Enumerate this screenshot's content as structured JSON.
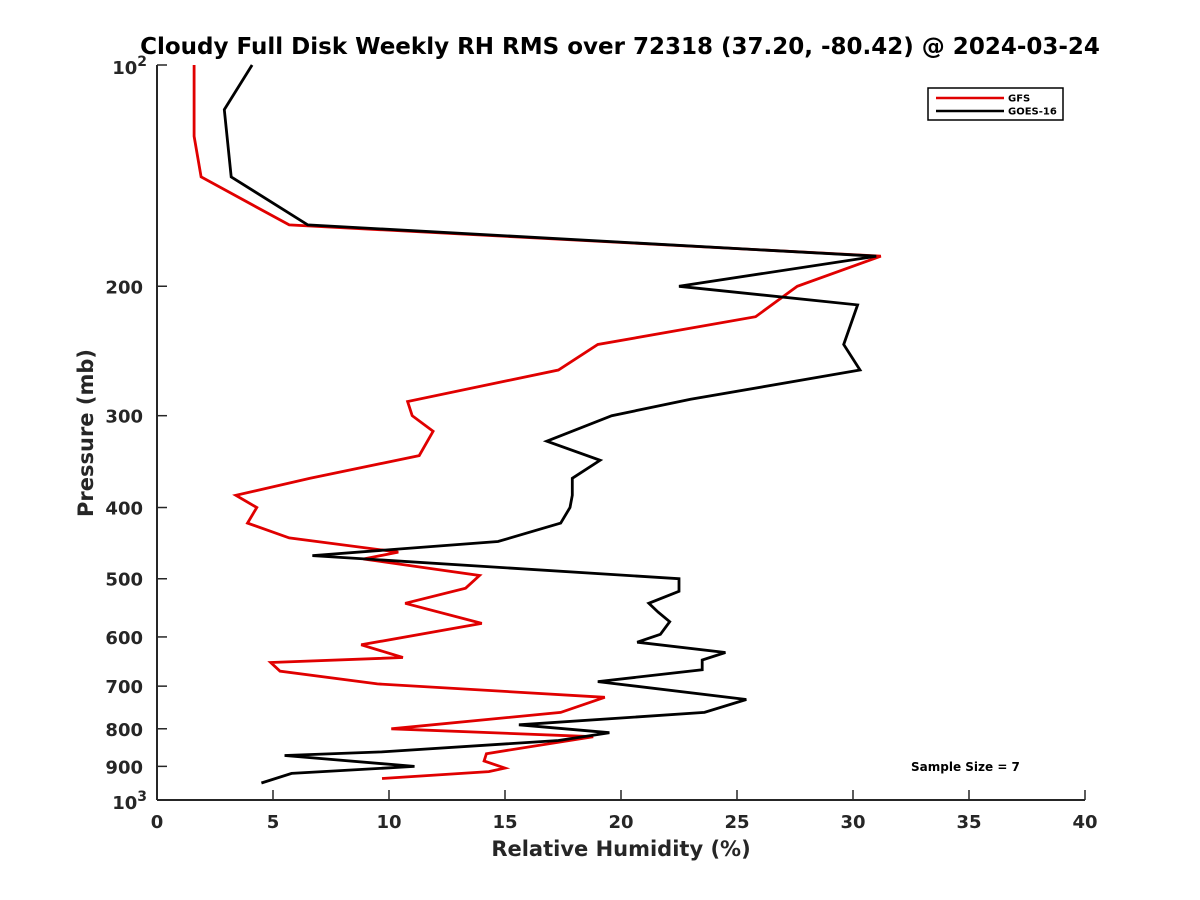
{
  "chart_data": {
    "type": "line",
    "title": "Cloudy Full Disk Weekly RH RMS over 72318 (37.20, -80.42) @ 2024-03-24",
    "xlabel": "Relative Humidity (%)",
    "ylabel": "Pressure (mb)",
    "xlim": [
      0,
      40
    ],
    "ylim": [
      100,
      1000
    ],
    "yscale": "log",
    "y_reversed": true,
    "xticks": [
      0,
      5,
      10,
      15,
      20,
      25,
      30,
      35,
      40
    ],
    "xtick_labels": [
      "0",
      "5",
      "10",
      "15",
      "20",
      "25",
      "30",
      "35",
      "40"
    ],
    "yticks": [
      200,
      300,
      400,
      500,
      600,
      700,
      800,
      900
    ],
    "ytick_labels": [
      "200",
      "300",
      "400",
      "500",
      "600",
      "700",
      "800",
      "900"
    ],
    "y_extreme_labels": [
      {
        "value": 100,
        "base": "10",
        "exp": "2"
      },
      {
        "value": 1000,
        "base": "10",
        "exp": "3"
      }
    ],
    "legend_position": "top-right",
    "series": [
      {
        "name": "GFS",
        "color": "#e00000",
        "x": [
          1.6,
          1.6,
          1.6,
          1.9,
          5.7,
          31.2,
          27.6,
          25.8,
          19.0,
          17.3,
          10.8,
          11.0,
          11.9,
          11.3,
          6.6,
          3.4,
          4.3,
          3.9,
          5.7,
          10.4,
          8.9,
          13.9,
          13.3,
          10.7,
          14.0,
          8.8,
          10.6,
          4.9,
          5.3,
          9.5,
          19.3,
          17.4,
          10.1,
          18.8,
          14.2,
          14.1,
          15.0,
          14.3,
          9.7
        ],
        "y": [
          100,
          115,
          125,
          142,
          165,
          182,
          200,
          220,
          240,
          260,
          287,
          300,
          315,
          340,
          365,
          385,
          400,
          420,
          440,
          460,
          470,
          495,
          515,
          540,
          575,
          615,
          640,
          650,
          668,
          695,
          725,
          760,
          800,
          820,
          865,
          885,
          905,
          915,
          935
        ]
      },
      {
        "name": "GOES-16",
        "color": "#000000",
        "x": [
          4.1,
          2.9,
          3.2,
          6.5,
          31.0,
          22.5,
          30.2,
          29.6,
          30.3,
          23.0,
          19.6,
          16.8,
          19.1,
          17.9,
          17.9,
          17.8,
          17.4,
          14.7,
          6.7,
          22.5,
          22.5,
          21.2,
          21.6,
          22.1,
          21.7,
          20.7,
          24.5,
          23.5,
          23.5,
          19.0,
          25.4,
          23.6,
          15.6,
          19.5,
          17.3,
          9.7,
          5.5,
          11.1,
          5.8,
          4.5
        ],
        "y": [
          100,
          115,
          142,
          165,
          182,
          200,
          212,
          240,
          260,
          285,
          300,
          325,
          345,
          365,
          385,
          400,
          420,
          445,
          465,
          500,
          520,
          540,
          555,
          572,
          595,
          610,
          630,
          645,
          665,
          690,
          730,
          760,
          790,
          810,
          830,
          860,
          870,
          900,
          920,
          948
        ]
      }
    ],
    "annotation": "Sample Size = 7"
  }
}
